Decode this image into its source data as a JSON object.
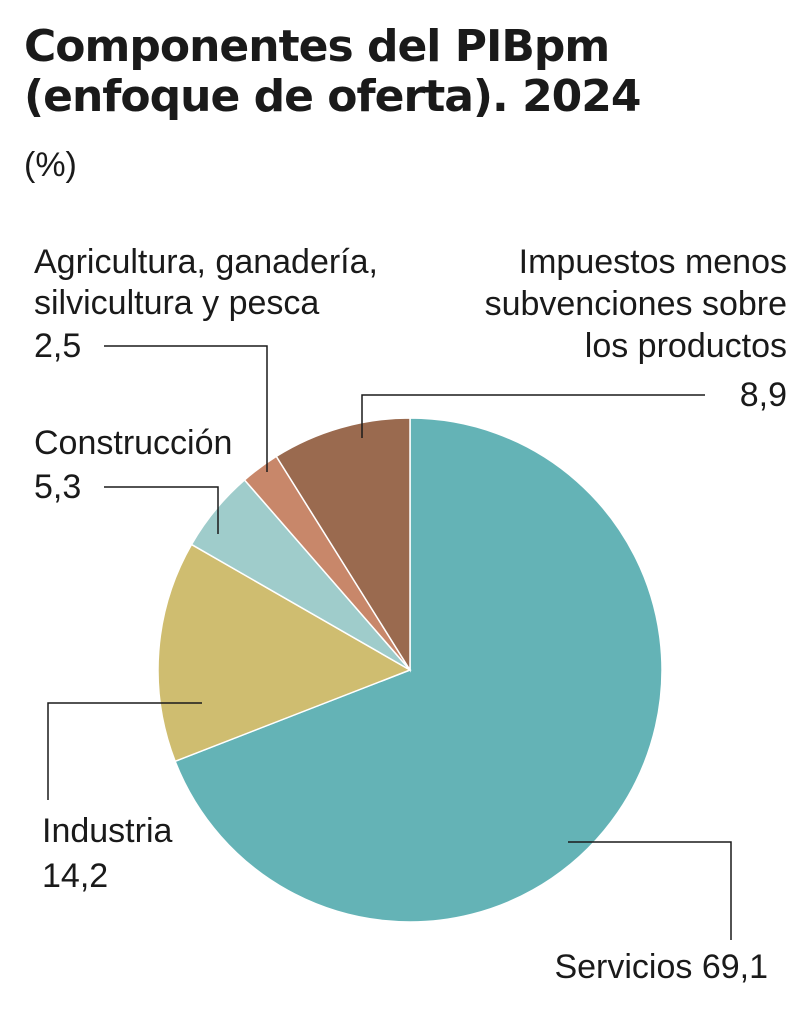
{
  "title_line1": "Componentes del PIBpm",
  "title_line2": "(enfoque de oferta). 2024",
  "subtitle": "(%)",
  "chart_data": {
    "type": "pie",
    "title": "Componentes del PIBpm (enfoque de oferta). 2024",
    "unit": "(%)",
    "slices": [
      {
        "label": "Servicios",
        "value": 69.1,
        "display": "69,1",
        "color": "#64b3b6"
      },
      {
        "label": "Industria",
        "value": 14.2,
        "display": "14,2",
        "color": "#cfbd70"
      },
      {
        "label": "Construcción",
        "value": 5.3,
        "display": "5,3",
        "color": "#9fcccb"
      },
      {
        "label": "Agricultura, ganadería, silvicultura y pesca",
        "value": 2.5,
        "display": "2,5",
        "color": "#c8876a"
      },
      {
        "label": "Impuestos menos subvenciones sobre los productos",
        "value": 8.9,
        "display": "8,9",
        "color": "#9a6a4f"
      }
    ]
  },
  "labels": {
    "agri_line1": "Agricultura, ganadería,",
    "agri_line2": "silvicultura y pesca",
    "agri_value": "2,5",
    "cons_name": "Construcción",
    "cons_value": "5,3",
    "imp_line1": "Impuestos menos",
    "imp_line2": "subvenciones sobre",
    "imp_line3": "los productos",
    "imp_value": "8,9",
    "ind_name": "Industria",
    "ind_value": "14,2",
    "serv_text": "Servicios 69,1"
  }
}
